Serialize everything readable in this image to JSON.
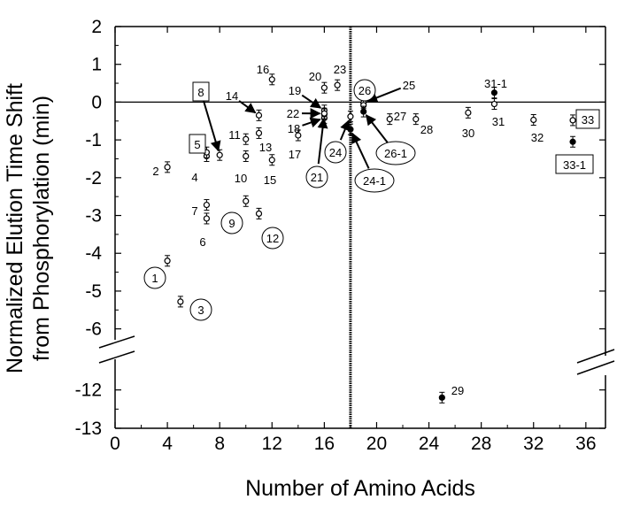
{
  "chart_data": {
    "type": "scatter",
    "title": "",
    "xlabel": "Number of Amino Acids",
    "ylabel": "Normalized Elution Time Shift from Phosphorylation (min)",
    "xlim": [
      0,
      37.5
    ],
    "xticks": [
      "0",
      "4",
      "8",
      "12",
      "16",
      "20",
      "24",
      "28",
      "32",
      "36"
    ],
    "y_upper": {
      "range": [
        -6.5,
        2
      ],
      "ticks": [
        "2",
        "1",
        "0",
        "-1",
        "-2",
        "-3",
        "-4",
        "-5",
        "-6"
      ]
    },
    "y_lower": {
      "range": [
        -13,
        -11.5
      ],
      "ticks": [
        "-12",
        "-13"
      ]
    },
    "axis_break": "between -6.5 and -11.5",
    "reference_lines": {
      "horizontal_y": 0,
      "vertical_x": 18
    },
    "points": [
      {
        "id": "1",
        "x": 4,
        "y": -4.2,
        "filled": false,
        "label_shape": "circle"
      },
      {
        "id": "2",
        "x": 4,
        "y": -1.72,
        "filled": false,
        "label_shape": "none"
      },
      {
        "id": "3",
        "x": 5,
        "y": -5.28,
        "filled": false,
        "label_shape": "circle"
      },
      {
        "id": "4",
        "x": 7,
        "y": -1.43,
        "filled": false,
        "label_shape": "none"
      },
      {
        "id": "5",
        "x": 7,
        "y": -1.33,
        "filled": false,
        "label_shape": "box"
      },
      {
        "id": "6",
        "x": 7,
        "y": -3.08,
        "filled": false,
        "label_shape": "none"
      },
      {
        "id": "7",
        "x": 7,
        "y": -2.72,
        "filled": false,
        "label_shape": "none"
      },
      {
        "id": "8",
        "x": 8,
        "y": -1.4,
        "filled": false,
        "label_shape": "box"
      },
      {
        "id": "9",
        "x": 10,
        "y": -2.62,
        "filled": false,
        "label_shape": "circle"
      },
      {
        "id": "10",
        "x": 10,
        "y": -1.43,
        "filled": false,
        "label_shape": "none"
      },
      {
        "id": "11",
        "x": 10,
        "y": -0.98,
        "filled": false,
        "label_shape": "none"
      },
      {
        "id": "12",
        "x": 11,
        "y": -2.95,
        "filled": false,
        "label_shape": "circle"
      },
      {
        "id": "13",
        "x": 11,
        "y": -0.82,
        "filled": false,
        "label_shape": "none"
      },
      {
        "id": "14",
        "x": 11,
        "y": -0.35,
        "filled": false,
        "label_shape": "none"
      },
      {
        "id": "15",
        "x": 12,
        "y": -1.53,
        "filled": false,
        "label_shape": "none"
      },
      {
        "id": "16",
        "x": 12,
        "y": 0.6,
        "filled": false,
        "label_shape": "none"
      },
      {
        "id": "17",
        "x": 14,
        "y": -0.88,
        "filled": false,
        "label_shape": "none"
      },
      {
        "id": "18",
        "x": 16,
        "y": -0.42,
        "filled": false,
        "label_shape": "none"
      },
      {
        "id": "19",
        "x": 16,
        "y": -0.22,
        "filled": false,
        "label_shape": "none"
      },
      {
        "id": "20",
        "x": 16,
        "y": 0.38,
        "filled": false,
        "label_shape": "none"
      },
      {
        "id": "21",
        "x": 16,
        "y": -0.32,
        "filled": true,
        "label_shape": "circle"
      },
      {
        "id": "22",
        "x": 16,
        "y": -0.3,
        "filled": false,
        "label_shape": "none"
      },
      {
        "id": "23",
        "x": 17,
        "y": 0.45,
        "filled": false,
        "label_shape": "none"
      },
      {
        "id": "24",
        "x": 18,
        "y": -0.38,
        "filled": false,
        "label_shape": "circle"
      },
      {
        "id": "24-1",
        "x": 18,
        "y": -0.72,
        "filled": true,
        "label_shape": "circle"
      },
      {
        "id": "25",
        "x": 19,
        "y": -0.02,
        "filled": false,
        "label_shape": "none"
      },
      {
        "id": "26",
        "x": 19,
        "y": -0.08,
        "filled": false,
        "label_shape": "circle"
      },
      {
        "id": "26-1",
        "x": 19,
        "y": -0.25,
        "filled": true,
        "label_shape": "circle"
      },
      {
        "id": "27",
        "x": 21,
        "y": -0.45,
        "filled": false,
        "label_shape": "none"
      },
      {
        "id": "28",
        "x": 23,
        "y": -0.45,
        "filled": false,
        "label_shape": "none"
      },
      {
        "id": "29",
        "x": 25,
        "y": -12.2,
        "filled": true,
        "label_shape": "none"
      },
      {
        "id": "30",
        "x": 27,
        "y": -0.28,
        "filled": false,
        "label_shape": "none"
      },
      {
        "id": "31",
        "x": 29,
        "y": -0.05,
        "filled": false,
        "label_shape": "none"
      },
      {
        "id": "31-1",
        "x": 29,
        "y": 0.25,
        "filled": true,
        "label_shape": "none"
      },
      {
        "id": "32",
        "x": 32,
        "y": -0.47,
        "filled": false,
        "label_shape": "none"
      },
      {
        "id": "33",
        "x": 35,
        "y": -0.48,
        "filled": false,
        "label_shape": "box"
      },
      {
        "id": "33-1",
        "x": 35,
        "y": -1.05,
        "filled": true,
        "label_shape": "box"
      }
    ],
    "arrows": [
      {
        "from_label": "8",
        "to_point": "8"
      },
      {
        "from_label": "14",
        "to_point": "14"
      },
      {
        "from_label": "19",
        "to_point": "19"
      },
      {
        "from_label": "22",
        "to_point": "22"
      },
      {
        "from_label": "18",
        "to_point": "18"
      },
      {
        "from_label": "21",
        "to_point": "21"
      },
      {
        "from_label": "24",
        "to_point": "24"
      },
      {
        "from_label": "24-1",
        "to_point": "24-1"
      },
      {
        "from_label": "25",
        "to_point": "25"
      },
      {
        "from_label": "26-1",
        "to_point": "26-1"
      }
    ]
  }
}
